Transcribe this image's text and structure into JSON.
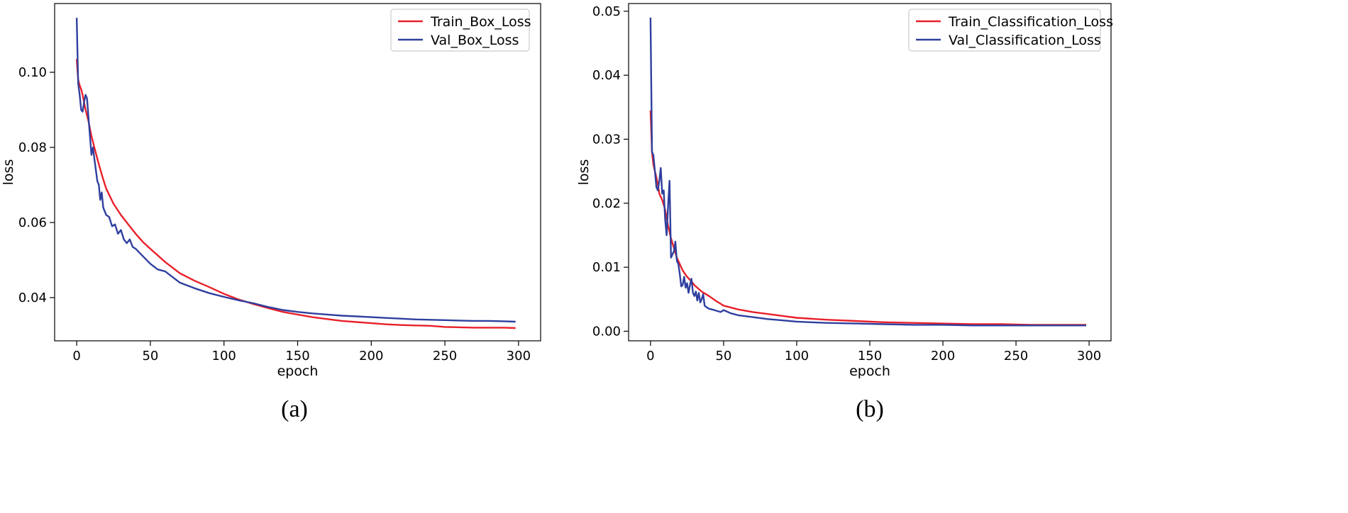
{
  "chart_data": [
    {
      "type": "line",
      "panel_label": "(a)",
      "xlabel": "epoch",
      "ylabel": "loss",
      "xlim": [
        -15,
        315
      ],
      "ylim": [
        0.0285,
        0.1183
      ],
      "xticks": [
        0,
        50,
        100,
        150,
        200,
        250,
        300
      ],
      "yticks": [
        0.04,
        0.06,
        0.08,
        0.1
      ],
      "ytick_labels": [
        "0.04",
        "0.06",
        "0.08",
        "0.10"
      ],
      "legend_position": "top-right",
      "series": [
        {
          "name": "Train_Box_Loss",
          "color": "#e8202a",
          "x": [
            0,
            1,
            2,
            3,
            4,
            5,
            6,
            7,
            8,
            9,
            10,
            12,
            15,
            18,
            20,
            25,
            30,
            35,
            40,
            45,
            50,
            60,
            70,
            80,
            90,
            100,
            110,
            120,
            130,
            140,
            150,
            160,
            170,
            180,
            190,
            200,
            210,
            220,
            230,
            240,
            250,
            260,
            270,
            280,
            290,
            298
          ],
          "y": [
            0.1035,
            0.098,
            0.0965,
            0.0955,
            0.094,
            0.092,
            0.09,
            0.0885,
            0.087,
            0.085,
            0.083,
            0.08,
            0.0755,
            0.0715,
            0.069,
            0.065,
            0.062,
            0.0595,
            0.057,
            0.0548,
            0.053,
            0.0495,
            0.0465,
            0.0445,
            0.0428,
            0.041,
            0.0395,
            0.0383,
            0.0372,
            0.0362,
            0.0355,
            0.0348,
            0.0343,
            0.0338,
            0.0335,
            0.0332,
            0.0329,
            0.0327,
            0.0326,
            0.0325,
            0.0322,
            0.0321,
            0.032,
            0.032,
            0.032,
            0.0319
          ]
        },
        {
          "name": "Val_Box_Loss",
          "color": "#2f3f9e",
          "x": [
            0,
            1,
            2,
            3,
            4,
            5,
            6,
            7,
            8,
            9,
            10,
            11,
            12,
            13,
            14,
            15,
            16,
            17,
            18,
            20,
            22,
            24,
            26,
            28,
            30,
            32,
            34,
            36,
            38,
            40,
            45,
            50,
            55,
            60,
            70,
            80,
            90,
            100,
            110,
            120,
            130,
            140,
            150,
            160,
            170,
            180,
            190,
            200,
            210,
            220,
            230,
            240,
            250,
            260,
            270,
            280,
            290,
            298
          ],
          "y": [
            0.1145,
            0.097,
            0.094,
            0.09,
            0.0895,
            0.092,
            0.094,
            0.093,
            0.088,
            0.083,
            0.078,
            0.08,
            0.077,
            0.074,
            0.071,
            0.07,
            0.066,
            0.068,
            0.064,
            0.062,
            0.0615,
            0.059,
            0.0595,
            0.057,
            0.058,
            0.0555,
            0.0545,
            0.0555,
            0.0535,
            0.053,
            0.051,
            0.049,
            0.0475,
            0.047,
            0.044,
            0.0425,
            0.0412,
            0.0402,
            0.0393,
            0.0385,
            0.0375,
            0.0367,
            0.0362,
            0.0358,
            0.0355,
            0.0352,
            0.035,
            0.0348,
            0.0346,
            0.0344,
            0.0342,
            0.0341,
            0.034,
            0.0339,
            0.0338,
            0.0338,
            0.0337,
            0.0336
          ]
        }
      ]
    },
    {
      "type": "line",
      "panel_label": "(b)",
      "xlabel": "epoch",
      "ylabel": "loss",
      "xlim": [
        -15,
        315
      ],
      "ylim": [
        -0.0015,
        0.0512
      ],
      "xticks": [
        0,
        50,
        100,
        150,
        200,
        250,
        300
      ],
      "yticks": [
        0.0,
        0.01,
        0.02,
        0.03,
        0.04,
        0.05
      ],
      "ytick_labels": [
        "0.00",
        "0.01",
        "0.02",
        "0.03",
        "0.04",
        "0.05"
      ],
      "legend_position": "top-right",
      "series": [
        {
          "name": "Train_Classification_Loss",
          "color": "#e8202a",
          "x": [
            0,
            1,
            2,
            3,
            4,
            5,
            6,
            7,
            8,
            10,
            12,
            14,
            16,
            18,
            20,
            22,
            25,
            28,
            30,
            35,
            40,
            45,
            50,
            60,
            70,
            80,
            90,
            100,
            120,
            140,
            160,
            180,
            200,
            220,
            240,
            260,
            280,
            298
          ],
          "y": [
            0.0345,
            0.028,
            0.026,
            0.025,
            0.024,
            0.023,
            0.0215,
            0.021,
            0.0205,
            0.019,
            0.0165,
            0.0145,
            0.013,
            0.0115,
            0.0105,
            0.0095,
            0.0085,
            0.0078,
            0.0072,
            0.0062,
            0.0055,
            0.0047,
            0.004,
            0.0034,
            0.003,
            0.0027,
            0.0024,
            0.0021,
            0.0018,
            0.0016,
            0.0014,
            0.0013,
            0.0012,
            0.0011,
            0.0011,
            0.001,
            0.001,
            0.001
          ]
        },
        {
          "name": "Val_Classification_Loss",
          "color": "#2f3f9e",
          "x": [
            0,
            1,
            2,
            3,
            4,
            5,
            6,
            7,
            8,
            9,
            10,
            11,
            12,
            13,
            14,
            15,
            16,
            17,
            18,
            19,
            20,
            21,
            22,
            23,
            24,
            25,
            26,
            27,
            28,
            29,
            30,
            31,
            32,
            33,
            34,
            35,
            36,
            37,
            38,
            40,
            42,
            45,
            48,
            50,
            55,
            60,
            70,
            80,
            90,
            100,
            120,
            140,
            160,
            180,
            200,
            220,
            240,
            260,
            280,
            298
          ],
          "y": [
            0.049,
            0.028,
            0.0275,
            0.025,
            0.0225,
            0.022,
            0.0235,
            0.0255,
            0.0215,
            0.022,
            0.0175,
            0.015,
            0.0195,
            0.0235,
            0.0115,
            0.012,
            0.0125,
            0.014,
            0.011,
            0.0105,
            0.009,
            0.007,
            0.0072,
            0.0085,
            0.0068,
            0.0075,
            0.006,
            0.0072,
            0.0082,
            0.006,
            0.0055,
            0.0062,
            0.0048,
            0.006,
            0.0045,
            0.005,
            0.0058,
            0.004,
            0.0038,
            0.0035,
            0.0034,
            0.0032,
            0.003,
            0.0033,
            0.0028,
            0.0025,
            0.0022,
            0.0019,
            0.0017,
            0.0015,
            0.0013,
            0.0012,
            0.0011,
            0.001,
            0.001,
            0.0009,
            0.0009,
            0.0009,
            0.0009,
            0.0009
          ]
        }
      ]
    }
  ]
}
